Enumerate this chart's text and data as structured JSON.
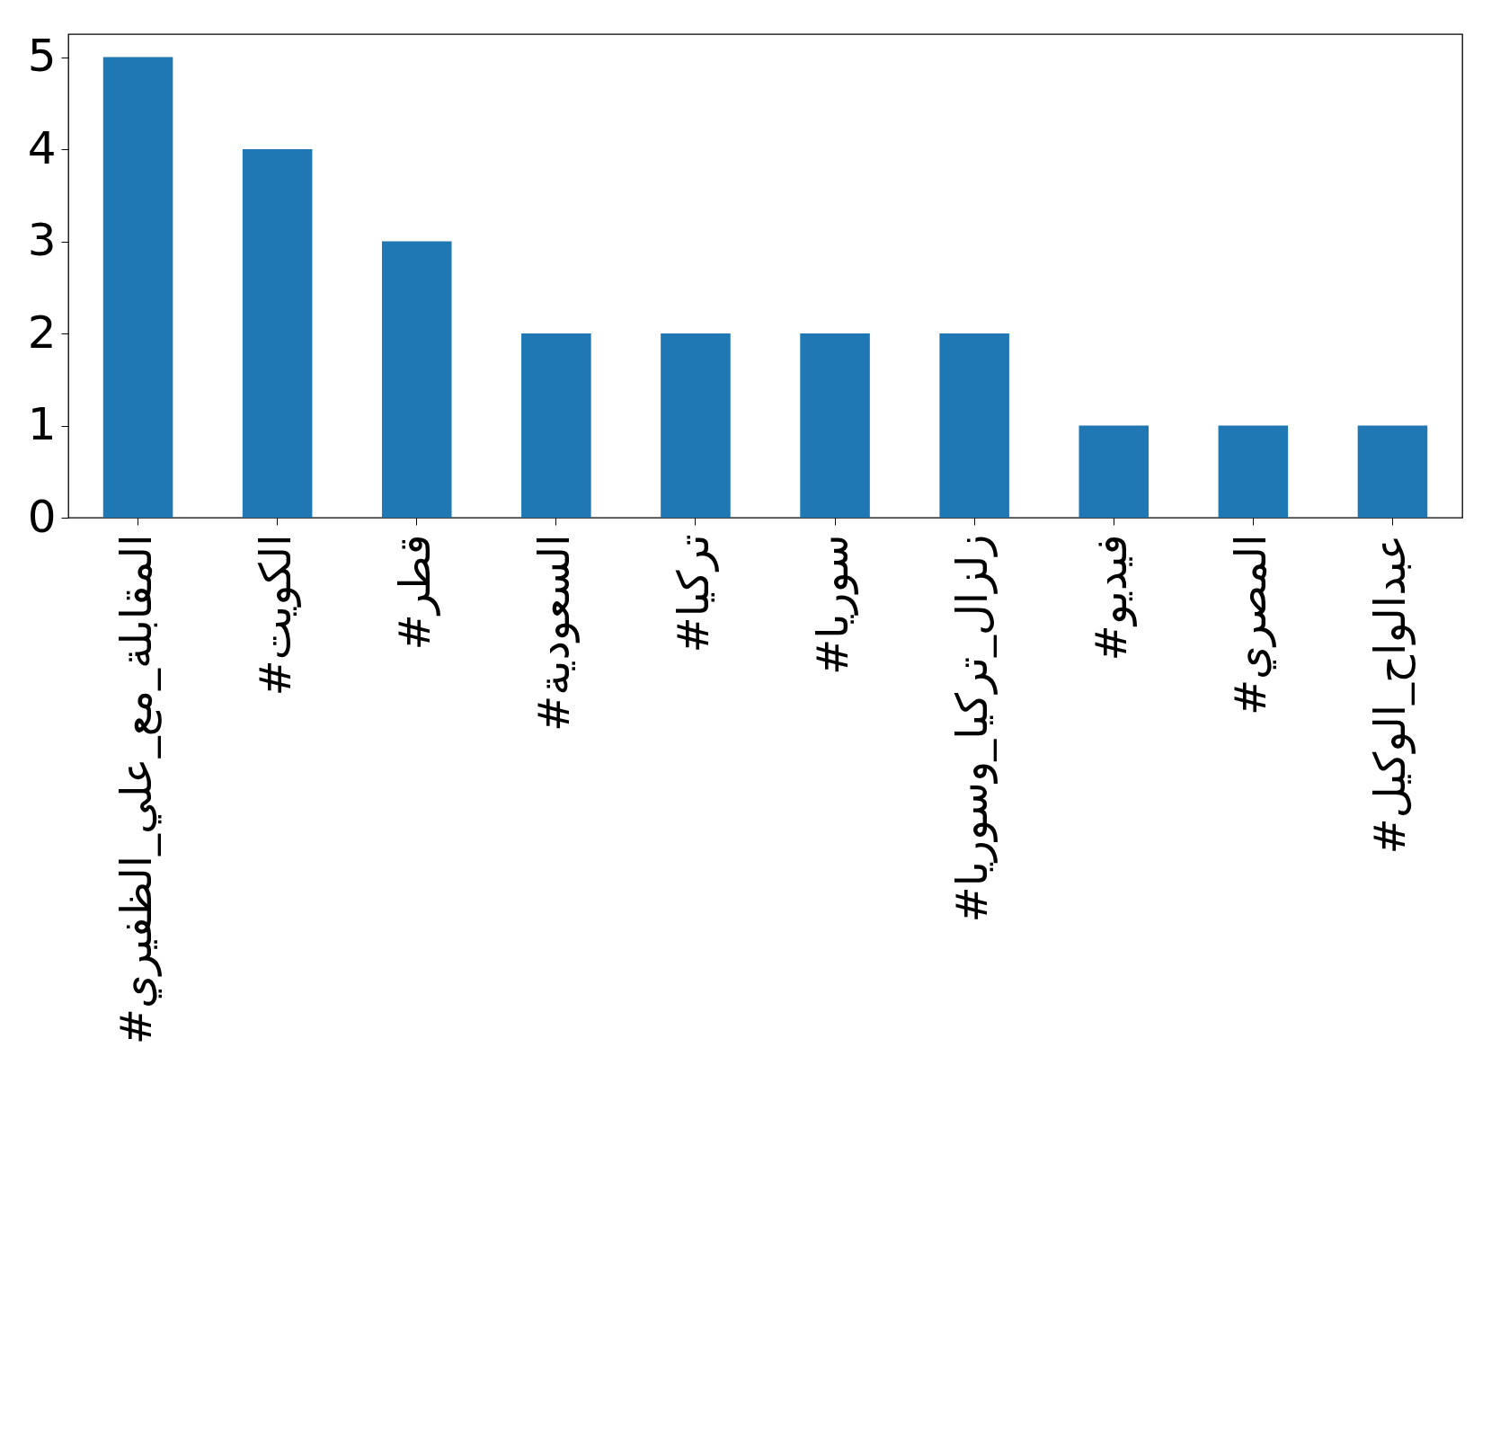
{
  "chart_data": {
    "type": "bar",
    "categories": [
      "#المقابلة_مع_علي_الظفيري",
      "#الكويت",
      "#قطر",
      "#السعودية",
      "#تركيا",
      "#سوريا",
      "#زلزال_تركيا_وسوريا",
      "#فيديو",
      "#المصري",
      "#عبدالواح_الوكيل"
    ],
    "values": [
      5,
      4,
      3,
      2,
      2,
      2,
      2,
      1,
      1,
      1
    ],
    "color": "#1f77b4",
    "ylim": [
      0,
      5.25
    ],
    "yticks": [
      0,
      1,
      2,
      3,
      4,
      5
    ],
    "grid": false
  }
}
